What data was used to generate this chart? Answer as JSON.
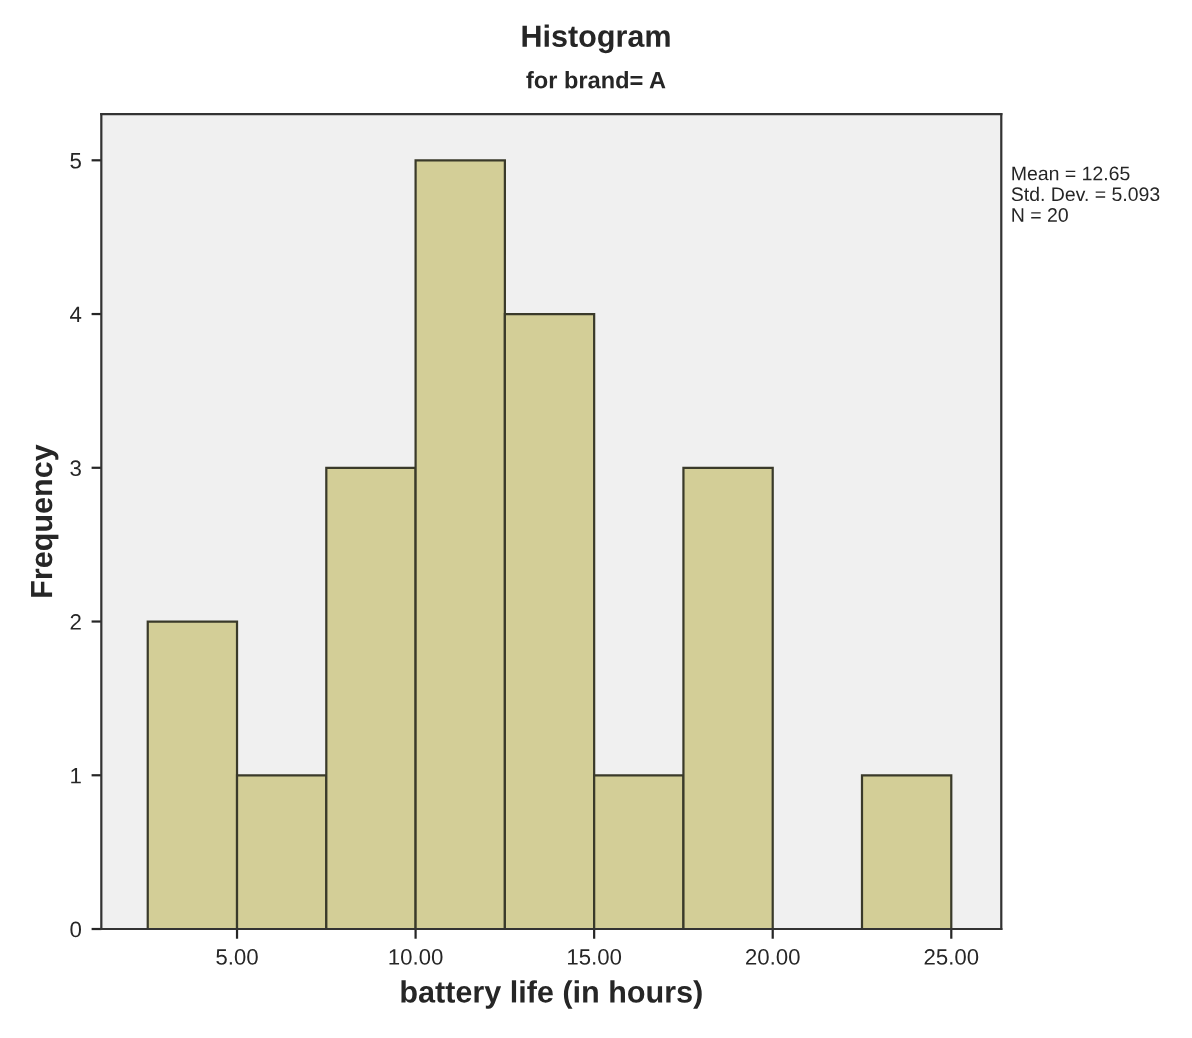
{
  "chart_data": {
    "type": "histogram",
    "title": "Histogram",
    "subtitle": "for brand= A",
    "xlabel": "battery life (in hours)",
    "ylabel": "Frequency",
    "bins": [
      2.5,
      5,
      7.5,
      10,
      12.5,
      15,
      17.5,
      20,
      22.5,
      25
    ],
    "values": [
      2,
      1,
      3,
      5,
      4,
      1,
      3,
      0,
      1
    ],
    "color": "#d3ce97",
    "xlim": [
      1.2,
      26.4
    ],
    "ylim": [
      0,
      5.3
    ],
    "xticks": [
      {
        "value": 5,
        "label": "5.00"
      },
      {
        "value": 10,
        "label": "10.00"
      },
      {
        "value": 15,
        "label": "15.00"
      },
      {
        "value": 20,
        "label": "20.00"
      },
      {
        "value": 25,
        "label": "25.00"
      }
    ],
    "yticks": [
      0,
      1,
      2,
      3,
      4,
      5
    ],
    "grid": false,
    "annotations": [
      "Mean = 12.65",
      "Std. Dev. = 5.093",
      "N = 20"
    ]
  }
}
